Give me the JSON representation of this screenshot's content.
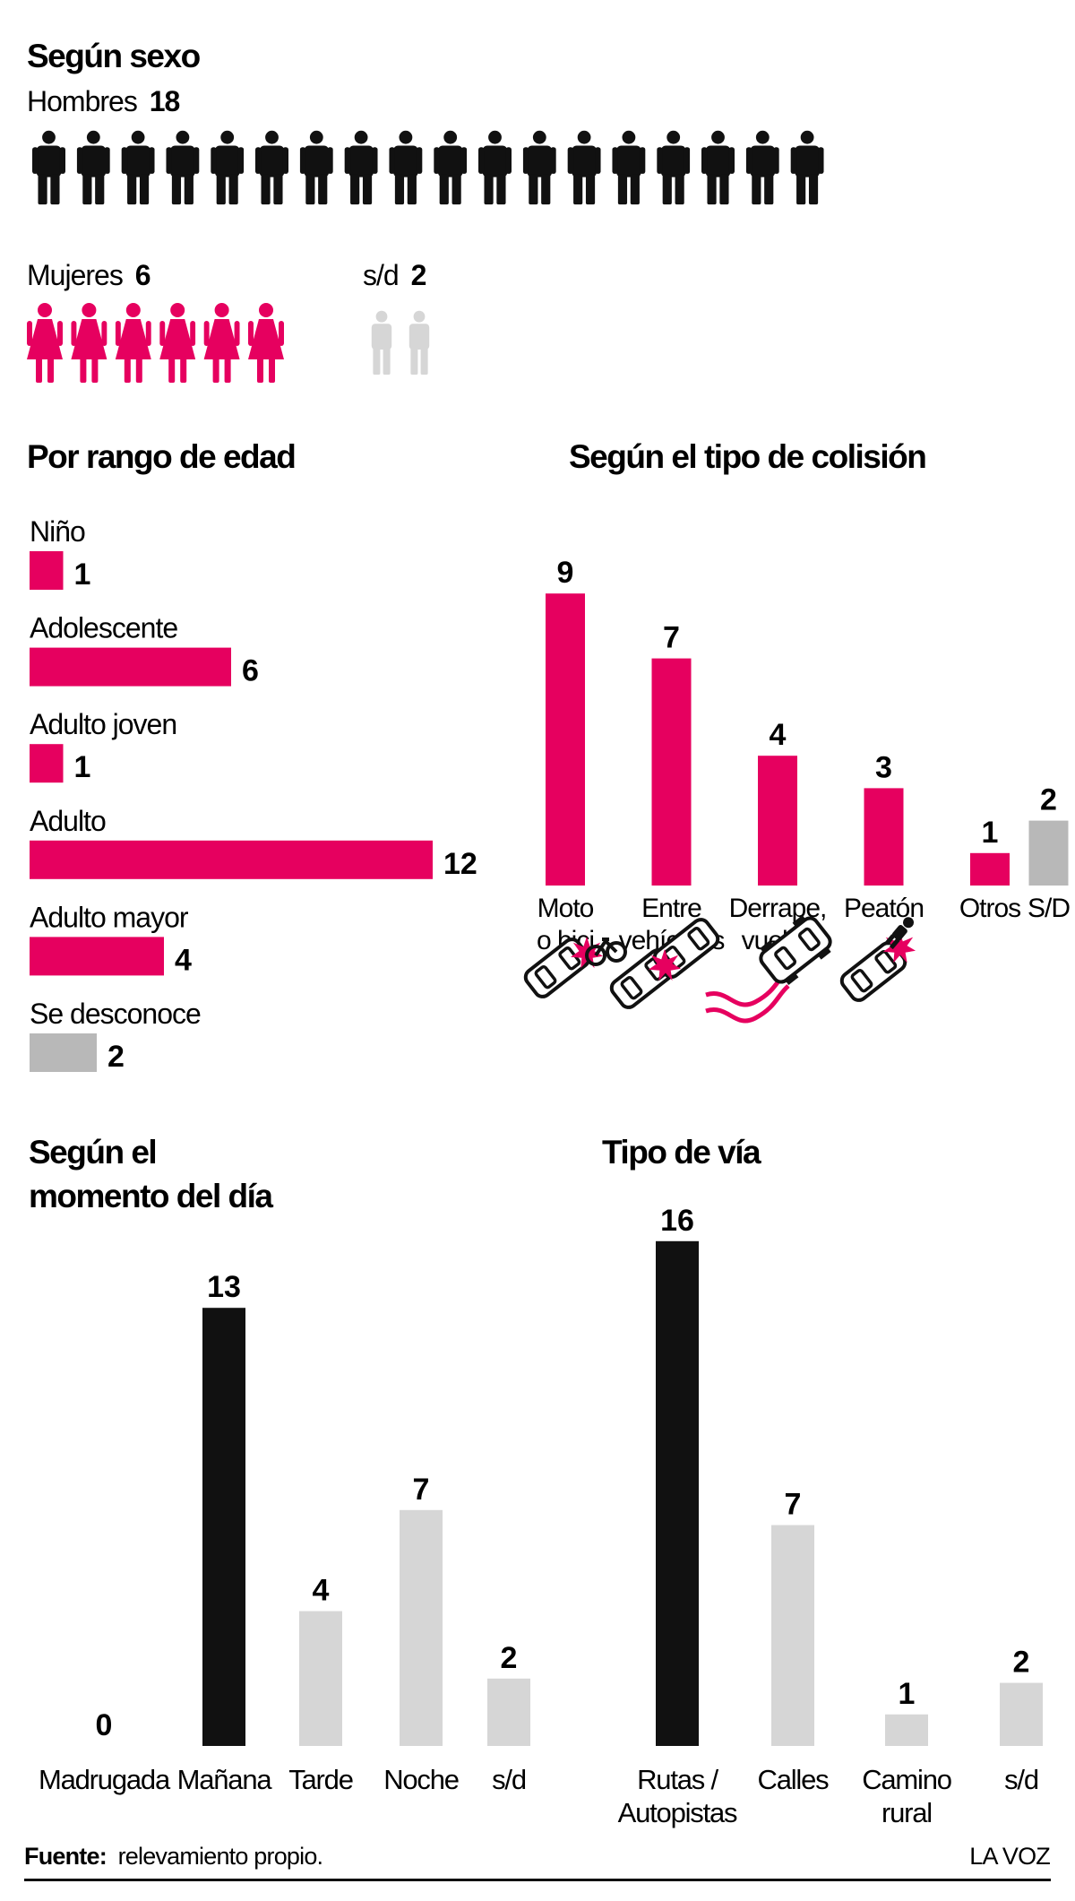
{
  "colors": {
    "pink": "#E6005F",
    "black": "#111111",
    "gray": "#B8B8B8",
    "lightgray": "#D6D6D6"
  },
  "chart_data": [
    {
      "type": "pictogram",
      "title": "Según sexo",
      "series": [
        {
          "name": "Hombres",
          "value": 18,
          "icon": "man-icon",
          "color": "#111111"
        },
        {
          "name": "Mujeres",
          "value": 6,
          "icon": "woman-icon",
          "color": "#E6005F"
        },
        {
          "name": "s/d",
          "value": 2,
          "icon": "unknown-person-icon",
          "color": "#D6D6D6"
        }
      ]
    },
    {
      "type": "bar",
      "orientation": "horizontal",
      "title": "Por rango de edad",
      "categories": [
        "Niño",
        "Adolescente",
        "Adulto joven",
        "Adulto",
        "Adulto mayor",
        "Se desconoce"
      ],
      "values": [
        1,
        6,
        1,
        12,
        4,
        2
      ],
      "colors": [
        "#E6005F",
        "#E6005F",
        "#E6005F",
        "#E6005F",
        "#E6005F",
        "#B8B8B8"
      ]
    },
    {
      "type": "bar",
      "title": "Según el tipo de colisión",
      "categories": [
        {
          "lines": [
            "Moto",
            "o bici"
          ],
          "icon": "car-bike-collision-icon"
        },
        {
          "lines": [
            "Entre",
            "vehículos"
          ],
          "icon": "car-car-collision-icon"
        },
        {
          "lines": [
            "Derrape,",
            "vuelco"
          ],
          "icon": "car-skid-icon"
        },
        {
          "lines": [
            "Peatón"
          ],
          "icon": "car-pedestrian-collision-icon"
        },
        {
          "lines": [
            "Otros"
          ]
        },
        {
          "lines": [
            "S/D"
          ]
        }
      ],
      "values": [
        9,
        7,
        4,
        3,
        1,
        2
      ],
      "colors": [
        "#E6005F",
        "#E6005F",
        "#E6005F",
        "#E6005F",
        "#E6005F",
        "#B8B8B8"
      ]
    },
    {
      "type": "bar",
      "title_lines": [
        "Según el",
        "momento del día"
      ],
      "categories": [
        {
          "lines": [
            "Madrugada"
          ]
        },
        {
          "lines": [
            "Mañana"
          ]
        },
        {
          "lines": [
            "Tarde"
          ]
        },
        {
          "lines": [
            "Noche"
          ]
        },
        {
          "lines": [
            "s/d"
          ]
        }
      ],
      "values": [
        0,
        13,
        4,
        7,
        2
      ],
      "colors": [
        "#D6D6D6",
        "#111111",
        "#D6D6D6",
        "#D6D6D6",
        "#D6D6D6"
      ]
    },
    {
      "type": "bar",
      "title": "Tipo de vía",
      "categories": [
        {
          "lines": [
            "Rutas /",
            "Autopistas"
          ]
        },
        {
          "lines": [
            "Calles"
          ]
        },
        {
          "lines": [
            "Camino",
            "rural"
          ]
        },
        {
          "lines": [
            "s/d"
          ]
        }
      ],
      "values": [
        16,
        7,
        1,
        2
      ],
      "colors": [
        "#111111",
        "#D6D6D6",
        "#D6D6D6",
        "#D6D6D6"
      ]
    }
  ],
  "footer": {
    "source_label": "Fuente:",
    "source_text": "relevamiento propio.",
    "brand": "LA VOZ"
  }
}
